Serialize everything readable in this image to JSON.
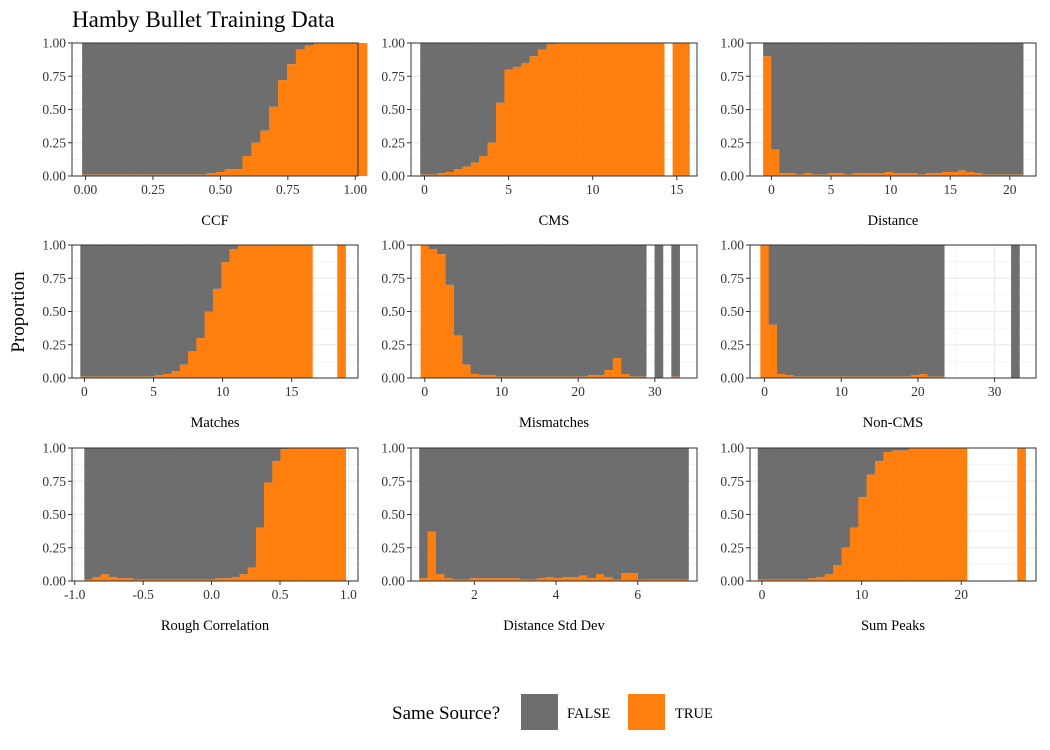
{
  "title": "Hamby Bullet Training Data",
  "ylabel": "Proportion",
  "legend": {
    "title": "Same Source?",
    "placement": "bottom",
    "entries": [
      {
        "label": "FALSE",
        "color": "#6e6e6e"
      },
      {
        "label": "TRUE",
        "color": "#ff7f0e"
      }
    ]
  },
  "colors": {
    "false": "#6e6e6e",
    "true": "#ff7f0e",
    "grid": "#ebebeb",
    "border": "#333333"
  },
  "chart_data": [
    {
      "type": "bar",
      "subtype": "stacked-proportion-histogram",
      "xlabel": "CCF",
      "xlim": [
        -0.05,
        1.01
      ],
      "ylim": [
        0,
        1
      ],
      "xticks": [
        0,
        0.25,
        0.5,
        0.75,
        1.0
      ],
      "xtick_labels": [
        "0.00",
        "0.25",
        "0.50",
        "0.75",
        "1.00"
      ],
      "yticks": [
        0,
        0.25,
        0.5,
        0.75,
        1.0
      ],
      "ytick_labels": [
        "0.00",
        "0.25",
        "0.50",
        "0.75",
        "1.00"
      ],
      "bin_start": -0.0125,
      "bin_width": 0.033,
      "true_prop": [
        0.01,
        0.01,
        0.01,
        0.01,
        0.01,
        0.01,
        0.01,
        0.01,
        0.01,
        0.01,
        0.01,
        0.01,
        0.01,
        0.01,
        0.02,
        0.03,
        0.05,
        0.05,
        0.15,
        0.25,
        0.34,
        0.52,
        0.72,
        0.84,
        0.95,
        0.98,
        1.0,
        1.0,
        1.0,
        1.0,
        1.0,
        1.0
      ]
    },
    {
      "type": "bar",
      "subtype": "stacked-proportion-histogram",
      "xlabel": "CMS",
      "xlim": [
        -0.8,
        16.2
      ],
      "ylim": [
        0,
        1
      ],
      "xticks": [
        0,
        5,
        10,
        15
      ],
      "xtick_labels": [
        "0",
        "5",
        "10",
        "15"
      ],
      "yticks": [
        0,
        0.25,
        0.5,
        0.75,
        1.0
      ],
      "ytick_labels": [
        "0.00",
        "0.25",
        "0.50",
        "0.75",
        "1.00"
      ],
      "bin_start": -0.25,
      "bin_width": 0.5,
      "true_prop": [
        0.01,
        0.01,
        0.02,
        0.03,
        0.05,
        0.07,
        0.1,
        0.15,
        0.25,
        0.55,
        0.8,
        0.82,
        0.85,
        0.9,
        0.95,
        0.99,
        1.0,
        1.0,
        1.0,
        1.0,
        1.0,
        1.0,
        1.0,
        1.0,
        1.0,
        1.0,
        1.0,
        1.0,
        1.0,
        null,
        1.0,
        1.0
      ]
    },
    {
      "type": "bar",
      "subtype": "stacked-proportion-histogram",
      "xlabel": "Distance",
      "xlim": [
        -1.8,
        22.2
      ],
      "ylim": [
        0,
        1
      ],
      "xticks": [
        0,
        5,
        10,
        15,
        20
      ],
      "xtick_labels": [
        "0",
        "5",
        "10",
        "15",
        "20"
      ],
      "yticks": [
        0,
        0.25,
        0.5,
        0.75,
        1.0
      ],
      "ytick_labels": [
        "0.00",
        "0.25",
        "0.50",
        "0.75",
        "1.00"
      ],
      "bin_start": -0.7,
      "bin_width": 0.682,
      "true_prop": [
        0.9,
        0.2,
        0.02,
        0.02,
        0.01,
        0.02,
        0.01,
        0.01,
        0.02,
        0.02,
        0.01,
        0.02,
        0.02,
        0.02,
        0.02,
        0.03,
        0.02,
        0.02,
        0.02,
        0.01,
        0.02,
        0.02,
        0.03,
        0.03,
        0.04,
        0.03,
        0.02,
        0.01,
        0.01,
        0.01,
        0.01,
        0.01
      ]
    },
    {
      "type": "bar",
      "subtype": "stacked-proportion-histogram",
      "xlabel": "Matches",
      "xlim": [
        -0.9,
        19.8
      ],
      "ylim": [
        0,
        1
      ],
      "xticks": [
        0,
        5,
        10,
        15
      ],
      "xtick_labels": [
        "0",
        "5",
        "10",
        "15"
      ],
      "yticks": [
        0,
        0.25,
        0.5,
        0.75,
        1.0
      ],
      "ytick_labels": [
        "0.00",
        "0.25",
        "0.50",
        "0.75",
        "1.00"
      ],
      "bin_start": -0.3,
      "bin_width": 0.6,
      "true_prop": [
        0.01,
        0.01,
        0.01,
        0.01,
        0.01,
        0.01,
        0.01,
        0.01,
        0.01,
        0.02,
        0.03,
        0.05,
        0.1,
        0.2,
        0.3,
        0.5,
        0.67,
        0.87,
        0.97,
        1.0,
        1.0,
        1.0,
        1.0,
        1.0,
        1.0,
        1.0,
        1.0,
        1.0,
        null,
        null,
        null,
        1.0
      ]
    },
    {
      "type": "bar",
      "subtype": "stacked-proportion-histogram",
      "xlabel": "Mismatches",
      "xlim": [
        -1.8,
        35.5
      ],
      "ylim": [
        0,
        1
      ],
      "xticks": [
        0,
        10,
        20,
        30
      ],
      "xtick_labels": [
        "0",
        "10",
        "20",
        "30"
      ],
      "yticks": [
        0,
        0.25,
        0.5,
        0.75,
        1.0
      ],
      "ytick_labels": [
        "0.00",
        "0.25",
        "0.50",
        "0.75",
        "1.00"
      ],
      "bin_start": -0.55,
      "bin_width": 1.09,
      "true_prop": [
        1.0,
        0.97,
        0.93,
        0.7,
        0.32,
        0.1,
        0.03,
        0.02,
        0.02,
        0.01,
        0.01,
        0.01,
        0.01,
        0.01,
        0.01,
        0.01,
        0.01,
        0.01,
        0.01,
        0.01,
        0.02,
        0.02,
        0.06,
        0.15,
        0.03,
        0.01,
        0.01,
        null,
        0.0,
        null,
        0.01,
        null
      ]
    },
    {
      "type": "bar",
      "subtype": "stacked-proportion-histogram",
      "xlabel": "Non-CMS",
      "xlim": [
        -1.9,
        35.4
      ],
      "ylim": [
        0,
        1
      ],
      "xticks": [
        0,
        10,
        20,
        30
      ],
      "xtick_labels": [
        "0",
        "10",
        "20",
        "30"
      ],
      "yticks": [
        0,
        0.25,
        0.5,
        0.75,
        1.0
      ],
      "ytick_labels": [
        "0.00",
        "0.25",
        "0.50",
        "0.75",
        "1.00"
      ],
      "bin_start": -0.55,
      "bin_width": 1.09,
      "true_prop": [
        1.0,
        0.4,
        0.03,
        0.02,
        0.01,
        0.01,
        0.01,
        0.01,
        0.01,
        0.01,
        0.01,
        0.01,
        0.01,
        0.01,
        0.01,
        0.01,
        0.01,
        0.01,
        0.02,
        0.03,
        0.01,
        0.01,
        null,
        null,
        null,
        null,
        null,
        null,
        null,
        null,
        0.0,
        null
      ]
    },
    {
      "type": "bar",
      "subtype": "stacked-proportion-histogram",
      "xlabel": "Rough Correlation",
      "xlim": [
        -1.02,
        1.07
      ],
      "ylim": [
        0,
        1
      ],
      "xticks": [
        -1.0,
        -0.5,
        0,
        0.5,
        1.0
      ],
      "xtick_labels": [
        "-1.0",
        "-0.5",
        "0.0",
        "0.5",
        "1.0"
      ],
      "yticks": [
        0,
        0.25,
        0.5,
        0.75,
        1.0
      ],
      "ytick_labels": [
        "0.00",
        "0.25",
        "0.50",
        "0.75",
        "1.00"
      ],
      "bin_start": -0.93,
      "bin_width": 0.0597,
      "true_prop": [
        0.01,
        0.03,
        0.05,
        0.03,
        0.02,
        0.02,
        0.01,
        0.01,
        0.01,
        0.01,
        0.01,
        0.01,
        0.01,
        0.01,
        0.01,
        0.01,
        0.02,
        0.02,
        0.03,
        0.05,
        0.1,
        0.4,
        0.74,
        0.9,
        0.99,
        1.0,
        1.0,
        1.0,
        1.0,
        1.0,
        1.0,
        1.0
      ]
    },
    {
      "type": "bar",
      "subtype": "stacked-proportion-histogram",
      "xlabel": "Distance Std Dev",
      "xlim": [
        0.45,
        7.45
      ],
      "ylim": [
        0,
        1
      ],
      "xticks": [
        2,
        4,
        6
      ],
      "xtick_labels": [
        "2",
        "4",
        "6"
      ],
      "yticks": [
        0,
        0.25,
        0.5,
        0.75,
        1.0
      ],
      "ytick_labels": [
        "0.00",
        "0.25",
        "0.50",
        "0.75",
        "1.00"
      ],
      "bin_start": 0.65,
      "bin_width": 0.206,
      "true_prop": [
        0.02,
        0.37,
        0.05,
        0.02,
        0.01,
        0.01,
        0.02,
        0.02,
        0.02,
        0.02,
        0.02,
        0.02,
        0.01,
        0.01,
        0.02,
        0.03,
        0.02,
        0.03,
        0.03,
        0.04,
        0.02,
        0.05,
        0.03,
        0.01,
        0.06,
        0.06,
        0.01,
        0.01,
        0.01,
        0.01,
        0.01,
        0.01
      ]
    },
    {
      "type": "bar",
      "subtype": "stacked-proportion-histogram",
      "xlabel": "Sum Peaks",
      "xlim": [
        -1.2,
        27.5
      ],
      "ylim": [
        0,
        1
      ],
      "xticks": [
        0,
        10,
        20
      ],
      "xtick_labels": [
        "0",
        "10",
        "20"
      ],
      "yticks": [
        0,
        0.25,
        0.5,
        0.75,
        1.0
      ],
      "ytick_labels": [
        "0.00",
        "0.25",
        "0.50",
        "0.75",
        "1.00"
      ],
      "bin_start": -0.42,
      "bin_width": 0.84,
      "true_prop": [
        0.01,
        0.01,
        0.01,
        0.01,
        0.01,
        0.01,
        0.02,
        0.03,
        0.05,
        0.12,
        0.25,
        0.4,
        0.63,
        0.8,
        0.9,
        0.97,
        0.98,
        0.98,
        1.0,
        1.0,
        1.0,
        1.0,
        1.0,
        1.0,
        1.0,
        null,
        null,
        null,
        null,
        null,
        null,
        1.0
      ]
    }
  ]
}
